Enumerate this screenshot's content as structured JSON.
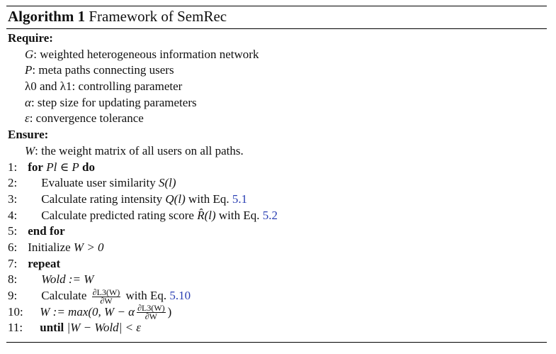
{
  "caption": {
    "label": "Algorithm 1",
    "title": "Framework of SemRec"
  },
  "require": {
    "label": "Require:",
    "items": [
      {
        "sym": "G",
        "text": ": weighted heterogeneous information network"
      },
      {
        "sym": "P",
        "text": ": meta paths connecting users"
      },
      {
        "sym": "λ0 and λ1",
        "text": ": controlling parameter"
      },
      {
        "sym": "α",
        "text": ": step size for updating parameters"
      },
      {
        "sym": "ε",
        "text": ": convergence tolerance"
      }
    ]
  },
  "ensure": {
    "label": "Ensure:",
    "item": {
      "sym": "W",
      "text": ": the weight matrix of all users on all paths."
    }
  },
  "steps": {
    "s1": {
      "num": "1:",
      "kw": "for",
      "expr": "Pl ∈ P",
      "kw2": "do"
    },
    "s2": {
      "num": "2:",
      "text": "Evaluate user similarity",
      "expr": "S(l)"
    },
    "s3": {
      "num": "3:",
      "text": "Calculate rating intensity",
      "expr": "Q(l)",
      "tail": "with Eq.",
      "ref": "5.1"
    },
    "s4": {
      "num": "4:",
      "text": "Calculate predicted rating score",
      "expr": "R̂(l)",
      "tail": "with Eq.",
      "ref": "5.2"
    },
    "s5": {
      "num": "5:",
      "kw": "end for"
    },
    "s6": {
      "num": "6:",
      "text": "Initialize",
      "expr": "W > 0"
    },
    "s7": {
      "num": "7:",
      "kw": "repeat"
    },
    "s8": {
      "num": "8:",
      "expr": "Wold := W"
    },
    "s9": {
      "num": "9:",
      "text": "Calculate",
      "frac_top": "∂L3(W)",
      "frac_bot": "∂W",
      "tail": "with Eq.",
      "ref": "5.10"
    },
    "s10": {
      "num": "10:",
      "expr": "W := max(0, W − α",
      "frac_top": "∂L3(W)",
      "frac_bot": "∂W",
      "close": ")"
    },
    "s11": {
      "num": "11:",
      "kw": "until",
      "expr": "|W − Wold| < ε"
    }
  }
}
